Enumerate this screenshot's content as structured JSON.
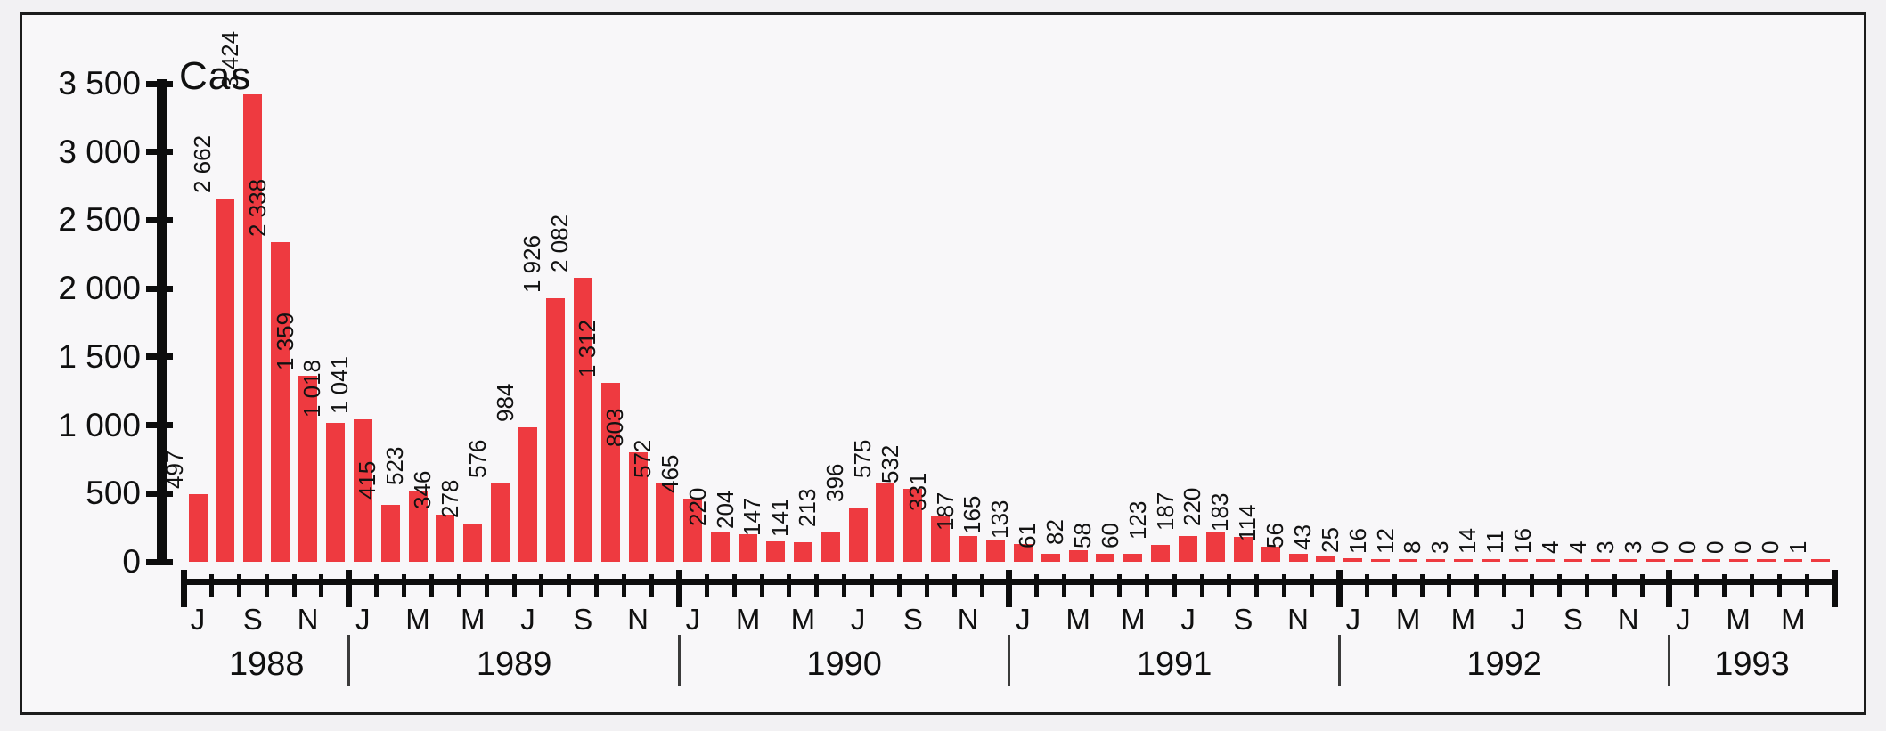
{
  "chart_data": {
    "type": "bar",
    "title": "Cas",
    "bar_color": "#ee3a40",
    "grid": false,
    "legend": false,
    "y_axis": {
      "min": 0,
      "max": 3500,
      "step": 500,
      "tick_labels": [
        "0",
        "500",
        "1 000",
        "1 500",
        "2 000",
        "2 500",
        "3 000",
        "3 500"
      ]
    },
    "x_axis_note": "monthly bars, month initials labeled every second month, grouped by year",
    "years": [
      {
        "label": "1988",
        "months": [
          "J",
          "S",
          "N"
        ],
        "values": [
          497,
          2662,
          3424,
          2338,
          1359,
          1018
        ]
      },
      {
        "label": "1989",
        "months": [
          "J",
          "M",
          "M",
          "J",
          "S",
          "N"
        ],
        "values": [
          1041,
          415,
          523,
          346,
          278,
          576,
          984,
          1926,
          2082,
          1312,
          803,
          572
        ]
      },
      {
        "label": "1990",
        "months": [
          "J",
          "M",
          "M",
          "J",
          "S",
          "N"
        ],
        "values": [
          465,
          220,
          204,
          147,
          141,
          213,
          396,
          575,
          532,
          331,
          187,
          165
        ]
      },
      {
        "label": "1991",
        "months": [
          "J",
          "M",
          "M",
          "J",
          "S",
          "N"
        ],
        "values": [
          133,
          61,
          82,
          58,
          60,
          123,
          187,
          220,
          183,
          114,
          56,
          43
        ]
      },
      {
        "label": "1992",
        "months": [
          "J",
          "M",
          "M",
          "J",
          "S",
          "N"
        ],
        "values": [
          25,
          16,
          12,
          8,
          3,
          14,
          11,
          16,
          4,
          4,
          3,
          3
        ]
      },
      {
        "label": "1993",
        "months": [
          "J",
          "M",
          "M"
        ],
        "values": [
          0,
          0,
          0,
          0,
          0,
          1
        ]
      }
    ],
    "value_labels": [
      "497",
      "2 662",
      "3 424",
      "2 338",
      "1 359",
      "1 018",
      "1 041",
      "415",
      "523",
      "346",
      "278",
      "576",
      "984",
      "1 926",
      "2 082",
      "1 312",
      "803",
      "572",
      "465",
      "220",
      "204",
      "147",
      "141",
      "213",
      "396",
      "575",
      "532",
      "331",
      "187",
      "165",
      "133",
      "61",
      "82",
      "58",
      "60",
      "123",
      "187",
      "220",
      "183",
      "114",
      "56",
      "43",
      "25",
      "16",
      "12",
      "8",
      "3",
      "14",
      "11",
      "16",
      "4",
      "4",
      "3",
      "3",
      "0",
      "0",
      "0",
      "0",
      "0",
      "1"
    ]
  }
}
